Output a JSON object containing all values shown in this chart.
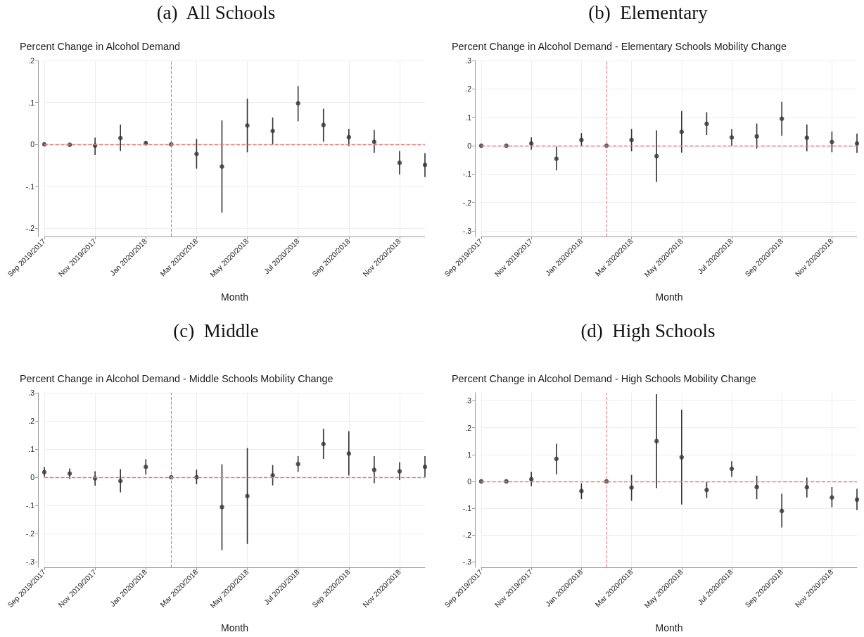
{
  "chart_data": [
    {
      "type": "scatter",
      "title": "(a)  All Schools",
      "subtitle": "Percent Change in Alcohol Demand",
      "xlabel": "Month",
      "categories": [
        "Sep 2019/2017",
        null,
        "Nov 2019/2017",
        null,
        "Jan 2020/2018",
        null,
        "Mar 2020/2018",
        null,
        "May 2020/2018",
        null,
        "Jul 2020/2018",
        null,
        "Sep 2020/2018",
        null,
        "Nov 2020/2018",
        null
      ],
      "values": [
        0,
        -0.001,
        -0.003,
        0.015,
        0.003,
        0,
        -0.023,
        -0.053,
        0.045,
        0.032,
        0.098,
        0.046,
        0.017,
        0.006,
        -0.044,
        -0.049
      ],
      "errors": [
        null,
        null,
        [
          -0.025,
          0.016
        ],
        [
          -0.016,
          0.047
        ],
        [
          -0.003,
          0.008
        ],
        null,
        [
          -0.058,
          0.013
        ],
        [
          -0.163,
          0.057
        ],
        [
          -0.019,
          0.109
        ],
        [
          0.0,
          0.064
        ],
        [
          0.055,
          0.139
        ],
        [
          0.006,
          0.085
        ],
        [
          -0.004,
          0.037
        ],
        [
          -0.02,
          0.034
        ],
        [
          -0.072,
          -0.016
        ],
        [
          -0.078,
          -0.021
        ]
      ],
      "color": "#333333",
      "marker": "circle",
      "ylim": [
        -0.22,
        0.2
      ],
      "yticks": [
        {
          "value": -0.2,
          "label": "-.2"
        },
        {
          "value": -0.1,
          "label": "-.1"
        },
        {
          "value": 0,
          "label": "0"
        },
        {
          "value": 0.1,
          "label": ".1"
        },
        {
          "value": 0.2,
          "label": ".2"
        }
      ],
      "grid": true,
      "ref_lines": [
        {
          "axis": "y",
          "value": 0,
          "color": "#e57b7b",
          "line_style": "dashed"
        }
      ]
    },
    {
      "type": "scatter",
      "title": "(b)  Elementary",
      "subtitle": "Percent Change in Alcohol Demand - Elementary Schools Mobility Change",
      "xlabel": "Month",
      "categories": [
        "Sep 2019/2017",
        null,
        "Nov 2019/2017",
        null,
        "Jan 2020/2018",
        null,
        "Mar 2020/2018",
        null,
        "May 2020/2018",
        null,
        "Jul 2020/2018",
        null,
        "Sep 2020/2018",
        null,
        "Nov 2020/2018",
        null
      ],
      "values": [
        0,
        0,
        0.008,
        -0.046,
        0.02,
        0,
        0.02,
        -0.037,
        0.049,
        0.077,
        0.029,
        0.033,
        0.095,
        0.028,
        0.013,
        0.008
      ],
      "errors": [
        null,
        null,
        [
          -0.014,
          0.029
        ],
        [
          -0.087,
          -0.004
        ],
        [
          0.0,
          0.044
        ],
        null,
        [
          -0.02,
          0.059
        ],
        [
          -0.128,
          0.054
        ],
        [
          -0.024,
          0.122
        ],
        [
          0.037,
          0.118
        ],
        [
          0.0,
          0.059
        ],
        [
          -0.01,
          0.078
        ],
        [
          0.035,
          0.154
        ],
        [
          -0.02,
          0.075
        ],
        [
          -0.023,
          0.05
        ],
        [
          -0.025,
          0.043
        ]
      ],
      "color": "#333333",
      "marker": "circle",
      "ylim": [
        -0.32,
        0.3
      ],
      "yticks": [
        {
          "value": -0.3,
          "label": "-.3"
        },
        {
          "value": -0.2,
          "label": "-.2"
        },
        {
          "value": -0.1,
          "label": "-.1"
        },
        {
          "value": 0,
          "label": "0"
        },
        {
          "value": 0.1,
          "label": ".1"
        },
        {
          "value": 0.2,
          "label": ".2"
        },
        {
          "value": 0.3,
          "label": ".3"
        }
      ],
      "grid": true,
      "ref_lines": [
        {
          "axis": "y",
          "value": 0,
          "color": "#e57b7b",
          "line_style": "dashed"
        }
      ]
    },
    {
      "type": "scatter",
      "title": "(c)  Middle",
      "subtitle": "Percent Change in Alcohol Demand - Middle Schools Mobility Change",
      "xlabel": "Month",
      "categories": [
        "Sep 2019/2017",
        null,
        "Nov 2019/2017",
        null,
        "Jan 2020/2018",
        null,
        "Mar 2020/2018",
        null,
        "May 2020/2018",
        null,
        "Jul 2020/2018",
        null,
        "Sep 2020/2018",
        null,
        "Nov 2020/2018",
        null
      ],
      "values": [
        0.018,
        0.013,
        -0.004,
        -0.013,
        0.037,
        0,
        0,
        -0.106,
        -0.067,
        0.007,
        0.047,
        0.118,
        0.084,
        0.026,
        0.021,
        0.037
      ],
      "errors": [
        [
          0.001,
          0.036
        ],
        [
          -0.006,
          0.031
        ],
        [
          -0.03,
          0.021
        ],
        [
          -0.054,
          0.029
        ],
        [
          0.009,
          0.064
        ],
        null,
        [
          -0.025,
          0.027
        ],
        [
          -0.259,
          0.046
        ],
        [
          -0.237,
          0.104
        ],
        [
          -0.029,
          0.043
        ],
        [
          0.019,
          0.075
        ],
        [
          0.065,
          0.172
        ],
        [
          0.006,
          0.164
        ],
        [
          -0.021,
          0.075
        ],
        [
          -0.01,
          0.053
        ],
        [
          0.0,
          0.075
        ]
      ],
      "color": "#333333",
      "marker": "circle",
      "ylim": [
        -0.32,
        0.3
      ],
      "yticks": [
        {
          "value": -0.3,
          "label": "-.3"
        },
        {
          "value": -0.2,
          "label": "-.2"
        },
        {
          "value": -0.1,
          "label": "-.1"
        },
        {
          "value": 0,
          "label": "0"
        },
        {
          "value": 0.1,
          "label": ".1"
        },
        {
          "value": 0.2,
          "label": ".2"
        },
        {
          "value": 0.3,
          "label": ".3"
        }
      ],
      "grid": true,
      "ref_lines": [
        {
          "axis": "y",
          "value": 0,
          "color": "#e57b7b",
          "line_style": "dashed"
        }
      ]
    },
    {
      "type": "scatter",
      "title": "(d)  High Schools",
      "subtitle": "Percent Change in Alcohol Demand - High Schools Mobility Change",
      "xlabel": "Month",
      "categories": [
        "Sep 2019/2017",
        null,
        "Nov 2019/2017",
        null,
        "Jan 2020/2018",
        null,
        "Mar 2020/2018",
        null,
        "May 2020/2018",
        null,
        "Jul 2020/2018",
        null,
        "Sep 2020/2018",
        null,
        "Nov 2020/2018",
        null
      ],
      "values": [
        0,
        0,
        0.008,
        0.084,
        -0.036,
        0,
        -0.023,
        0.15,
        0.09,
        -0.032,
        0.047,
        -0.021,
        -0.11,
        -0.022,
        -0.06,
        -0.068
      ],
      "errors": [
        null,
        null,
        [
          -0.018,
          0.035
        ],
        [
          0.026,
          0.14
        ],
        [
          -0.066,
          -0.007
        ],
        null,
        [
          -0.072,
          0.024
        ],
        [
          -0.025,
          0.325
        ],
        [
          -0.086,
          0.267
        ],
        [
          -0.062,
          -0.002
        ],
        [
          0.017,
          0.075
        ],
        [
          -0.066,
          0.021
        ],
        [
          -0.172,
          -0.046
        ],
        [
          -0.06,
          0.014
        ],
        [
          -0.096,
          -0.021
        ],
        [
          -0.107,
          -0.028
        ]
      ],
      "color": "#333333",
      "marker": "circle",
      "ylim": [
        -0.32,
        0.33
      ],
      "yticks": [
        {
          "value": -0.3,
          "label": "-.3"
        },
        {
          "value": -0.2,
          "label": "-.2"
        },
        {
          "value": -0.1,
          "label": "-.1"
        },
        {
          "value": 0,
          "label": "0"
        },
        {
          "value": 0.1,
          "label": ".1"
        },
        {
          "value": 0.2,
          "label": ".2"
        },
        {
          "value": 0.3,
          "label": ".3"
        }
      ],
      "grid": true,
      "ref_lines": [
        {
          "axis": "y",
          "value": 0,
          "color": "#e57b7b",
          "line_style": "dashed"
        }
      ]
    }
  ]
}
